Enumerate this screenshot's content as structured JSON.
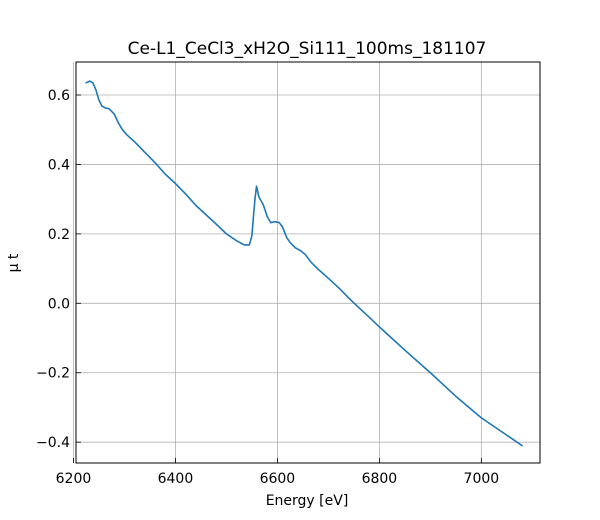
{
  "chart_data": {
    "type": "line",
    "title": "Ce-L1_CeCl3_xH2O_Si111_100ms_181107",
    "xlabel": "Energy [eV]",
    "ylabel": "μ t",
    "xlim": [
      6205,
      7115
    ],
    "ylim": [
      -0.46,
      0.695
    ],
    "grid": true,
    "xticks": [
      6200,
      6400,
      6600,
      6800,
      7000
    ],
    "yticks": [
      -0.4,
      -0.2,
      0.0,
      0.2,
      0.4,
      0.6
    ],
    "ytick_labels": [
      "−0.4",
      "−0.2",
      "0.0",
      "0.2",
      "0.4",
      "0.6"
    ],
    "series": [
      {
        "color": "#1f77b4",
        "x": [
          6225,
          6232,
          6238,
          6244,
          6250,
          6256,
          6262,
          6270,
          6280,
          6288,
          6296,
          6305,
          6320,
          6340,
          6360,
          6380,
          6400,
          6420,
          6440,
          6460,
          6480,
          6500,
          6520,
          6535,
          6545,
          6550,
          6553,
          6556,
          6559,
          6561,
          6563,
          6566,
          6572,
          6580,
          6587,
          6594,
          6603,
          6610,
          6618,
          6625,
          6635,
          6645,
          6655,
          6665,
          6680,
          6700,
          6720,
          6740,
          6760,
          6780,
          6800,
          6850,
          6900,
          6950,
          7000,
          7050,
          7080
        ],
        "y": [
          0.635,
          0.64,
          0.635,
          0.615,
          0.585,
          0.568,
          0.563,
          0.56,
          0.545,
          0.52,
          0.5,
          0.485,
          0.465,
          0.435,
          0.405,
          0.372,
          0.345,
          0.315,
          0.282,
          0.255,
          0.228,
          0.2,
          0.18,
          0.168,
          0.168,
          0.195,
          0.25,
          0.3,
          0.337,
          0.325,
          0.31,
          0.3,
          0.285,
          0.25,
          0.232,
          0.235,
          0.233,
          0.22,
          0.19,
          0.175,
          0.16,
          0.152,
          0.14,
          0.12,
          0.098,
          0.072,
          0.045,
          0.015,
          -0.013,
          -0.04,
          -0.068,
          -0.135,
          -0.2,
          -0.268,
          -0.33,
          -0.38,
          -0.41
        ]
      }
    ]
  }
}
